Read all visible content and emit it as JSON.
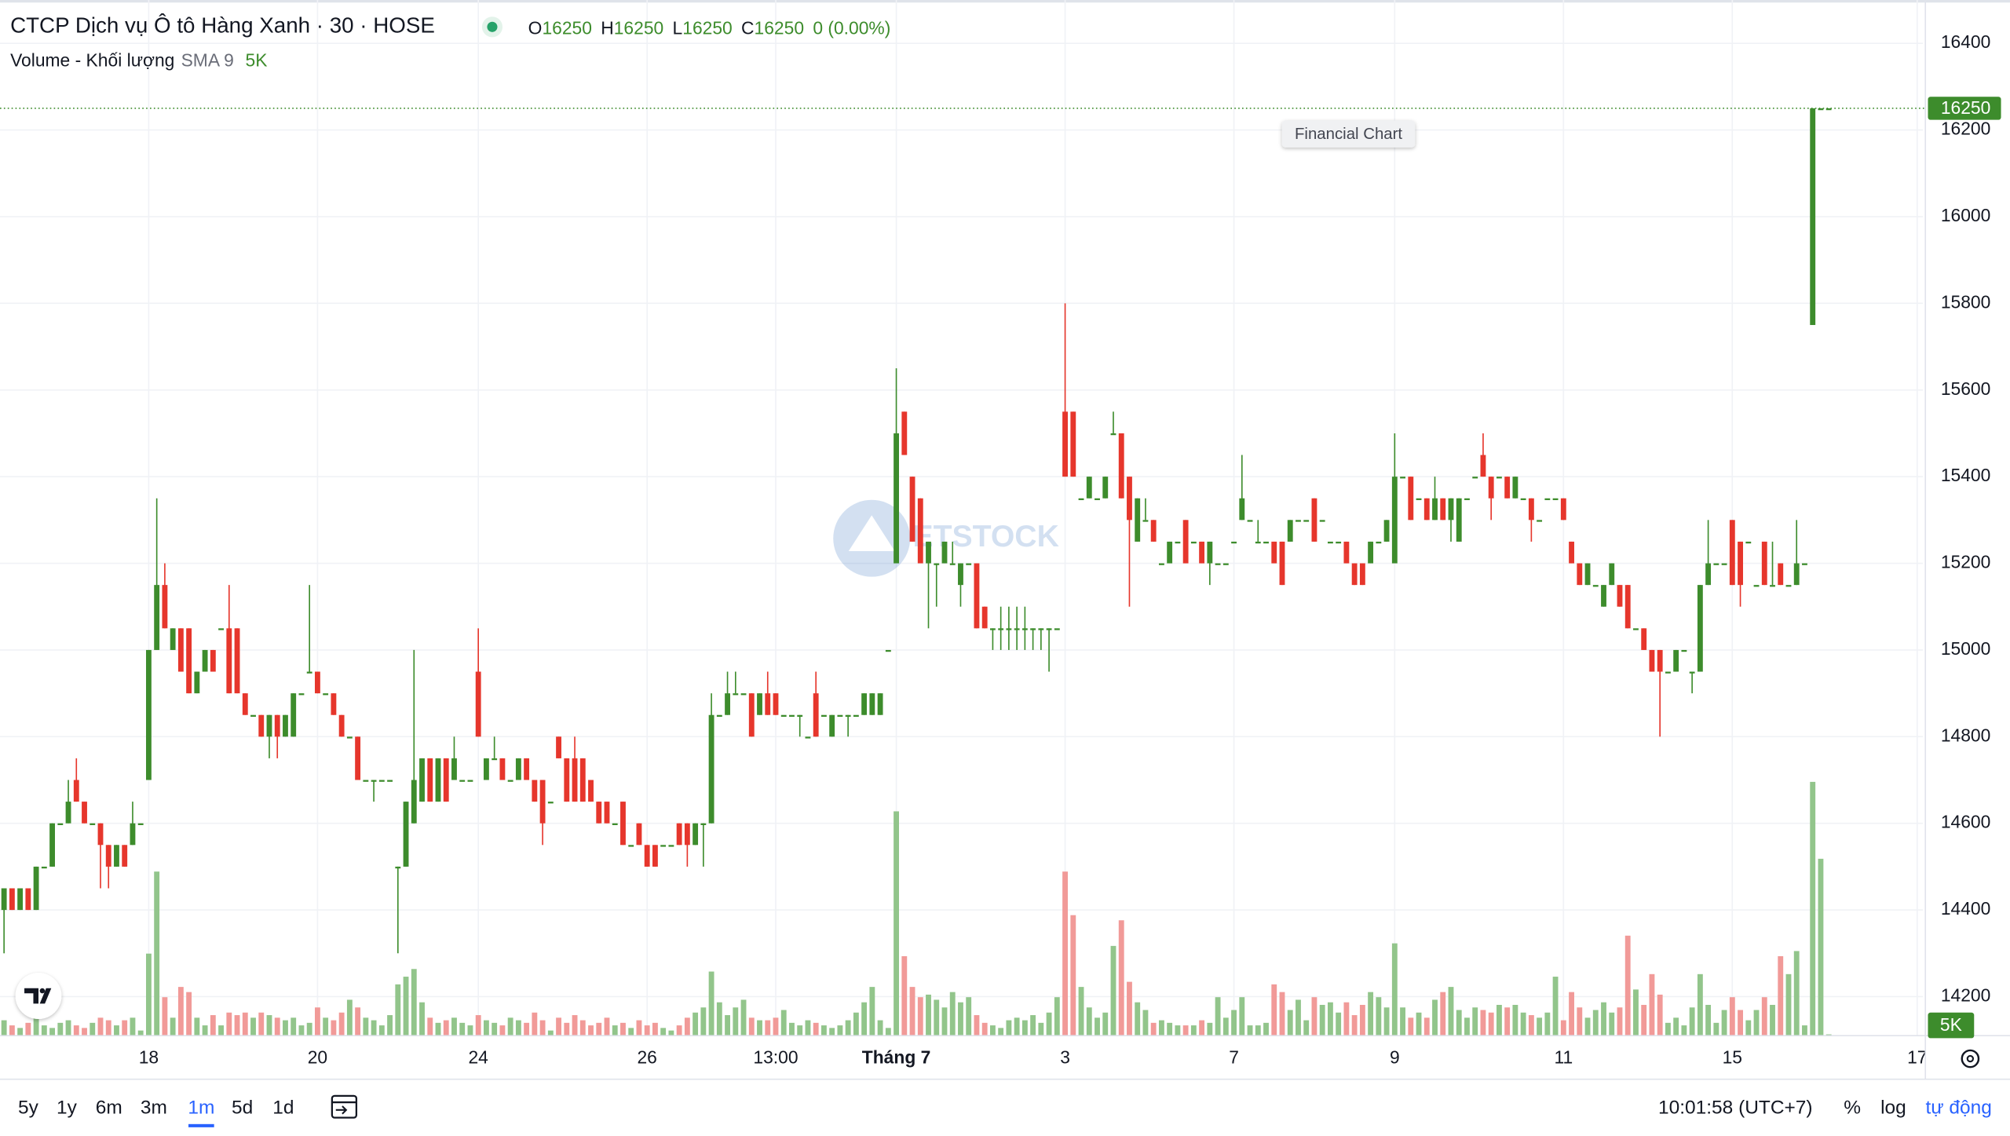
{
  "header": {
    "title": "CTCP Dịch vụ Ô tô Hàng Xanh · 30 · HOSE",
    "ohlc": [
      {
        "key": "O",
        "value": 16250
      },
      {
        "key": "H",
        "value": 16250
      },
      {
        "key": "L",
        "value": 16250
      },
      {
        "key": "C",
        "value": 16250
      }
    ],
    "change": "0 (0.00%)"
  },
  "volume_legend": {
    "name": "Volume - Khối lượng",
    "sma": "SMA 9",
    "last": "5K"
  },
  "tooltip": "Financial Chart",
  "watermark": "ETSTOCK",
  "chart_data": {
    "type": "candlestick",
    "xlim": [
      -0.5,
      238.7
    ],
    "xticks": [
      {
        "value": 18,
        "label": "18"
      },
      {
        "value": 39,
        "label": "20"
      },
      {
        "value": 59,
        "label": "24"
      },
      {
        "value": 80,
        "label": "26"
      },
      {
        "value": 96,
        "label": "13:00"
      },
      {
        "value": 111,
        "label": "Tháng 7",
        "bold": true
      },
      {
        "value": 132,
        "label": "3"
      },
      {
        "value": 153,
        "label": "7"
      },
      {
        "value": 173,
        "label": "9"
      },
      {
        "value": 194,
        "label": "11"
      },
      {
        "value": 215,
        "label": "15"
      },
      {
        "value": 238,
        "label": "17"
      }
    ],
    "ylim": [
      14110,
      16500
    ],
    "yticks": [
      14200,
      14400,
      14600,
      14800,
      15000,
      15200,
      15400,
      15600,
      15800,
      16000,
      16200,
      16400
    ],
    "volume_ylim": [
      0,
      1000000
    ],
    "grid": true,
    "up_color": "#3d8c2c",
    "down_color": "#e6362c",
    "volume_up_color": "#92c58b",
    "volume_down_color": "#f19a98",
    "open": [
      14400,
      14450,
      14400,
      14450,
      14400,
      14500,
      14500,
      14600,
      14600,
      14700,
      14650,
      14600,
      14600,
      14550,
      14500,
      14550,
      14550,
      14600,
      14700,
      15000,
      15150,
      15000,
      15050,
      15050,
      14900,
      14950,
      15000,
      15050,
      15050,
      15050,
      14900,
      14850,
      14850,
      14800,
      14850,
      14800,
      14800,
      14900,
      14950,
      14950,
      14900,
      14900,
      14850,
      14800,
      14800,
      14700,
      14700,
      14700,
      14700,
      14500,
      14500,
      14600,
      14650,
      14750,
      14650,
      14750,
      14700,
      14700,
      14700,
      14950,
      14700,
      14750,
      14750,
      14700,
      14700,
      14750,
      14700,
      14700,
      14650,
      14800,
      14750,
      14750,
      14750,
      14700,
      14650,
      14650,
      14600,
      14650,
      14550,
      14600,
      14550,
      14550,
      14550,
      14550,
      14600,
      14600,
      14550,
      14600,
      14600,
      14850,
      14850,
      14900,
      14900,
      14900,
      14850,
      14900,
      14900,
      14850,
      14850,
      14850,
      14800,
      14900,
      14850,
      14800,
      14850,
      14850,
      14850,
      14850,
      14850,
      14850,
      15000,
      15200,
      15550,
      15400,
      15350,
      15200,
      15200,
      15200,
      15200,
      15150,
      15200,
      15200,
      15100,
      15050,
      15050,
      15050,
      15050,
      15050,
      15050,
      15050,
      15050,
      15050,
      15550,
      15550,
      15350,
      15350,
      15350,
      15350,
      15500,
      15500,
      15400,
      15250,
      15300,
      15300,
      15200,
      15200,
      15250,
      15300,
      15250,
      15250,
      15200,
      15200,
      15200,
      15250,
      15300,
      15300,
      15250,
      15250,
      15250,
      15250,
      15250,
      15300,
      15300,
      15350,
      15300,
      15250,
      15250,
      15250,
      15200,
      15200,
      15200,
      15250,
      15250,
      15200,
      15400,
      15400,
      15350,
      15350,
      15300,
      15350,
      15300,
      15250,
      15350,
      15400,
      15450,
      15400,
      15400,
      15400,
      15350,
      15350,
      15350,
      15300,
      15350,
      15350,
      15350,
      15250,
      15200,
      15150,
      15150,
      15100,
      15150,
      15150,
      15150,
      15050,
      15050,
      15000,
      15000,
      14950,
      14950,
      15000,
      14950,
      14950,
      15150,
      15200,
      15200,
      15300,
      15250,
      15250,
      15150,
      15250,
      15150,
      15200,
      15150,
      15150,
      15200,
      15750,
      16250,
      16250
    ],
    "high": [
      14450,
      14450,
      14450,
      14450,
      14500,
      14500,
      14600,
      14600,
      14700,
      14750,
      14650,
      14600,
      14600,
      14550,
      14550,
      14550,
      14650,
      14600,
      15000,
      15350,
      15200,
      15050,
      15050,
      15050,
      14950,
      15000,
      15000,
      15050,
      15150,
      15050,
      14900,
      14850,
      14850,
      14850,
      14850,
      14850,
      14900,
      14900,
      15150,
      14950,
      14900,
      14900,
      14850,
      14800,
      14800,
      14700,
      14700,
      14700,
      14700,
      14500,
      14650,
      15000,
      14750,
      14750,
      14750,
      14750,
      14800,
      14700,
      14700,
      15050,
      14750,
      14800,
      14750,
      14700,
      14750,
      14750,
      14700,
      14700,
      14650,
      14800,
      14750,
      14800,
      14750,
      14700,
      14650,
      14650,
      14600,
      14650,
      14550,
      14600,
      14550,
      14550,
      14550,
      14550,
      14600,
      14600,
      14600,
      14600,
      14900,
      14850,
      14950,
      14950,
      14900,
      14900,
      14900,
      14950,
      14900,
      14850,
      14850,
      14850,
      14800,
      14950,
      14850,
      14850,
      14850,
      14850,
      14850,
      14900,
      14900,
      14900,
      15000,
      15650,
      15550,
      15400,
      15350,
      15250,
      15200,
      15250,
      15250,
      15200,
      15200,
      15200,
      15100,
      15050,
      15100,
      15100,
      15100,
      15100,
      15050,
      15050,
      15050,
      15050,
      15800,
      15550,
      15350,
      15400,
      15350,
      15400,
      15550,
      15500,
      15400,
      15350,
      15350,
      15300,
      15200,
      15250,
      15250,
      15300,
      15250,
      15250,
      15250,
      15200,
      15200,
      15250,
      15450,
      15300,
      15300,
      15250,
      15250,
      15250,
      15300,
      15300,
      15300,
      15350,
      15300,
      15250,
      15250,
      15250,
      15200,
      15200,
      15250,
      15250,
      15300,
      15500,
      15400,
      15400,
      15350,
      15350,
      15400,
      15350,
      15350,
      15350,
      15350,
      15400,
      15500,
      15400,
      15400,
      15400,
      15400,
      15350,
      15350,
      15300,
      15350,
      15350,
      15350,
      15250,
      15200,
      15200,
      15150,
      15150,
      15200,
      15150,
      15150,
      15050,
      15050,
      15000,
      15000,
      14950,
      15000,
      15000,
      14950,
      15150,
      15300,
      15200,
      15200,
      15300,
      15250,
      15250,
      15150,
      15250,
      15250,
      15200,
      15150,
      15300,
      15200,
      16250,
      16250,
      16250
    ],
    "low": [
      14300,
      14400,
      14400,
      14400,
      14400,
      14500,
      14500,
      14600,
      14600,
      14650,
      14600,
      14600,
      14450,
      14450,
      14500,
      14500,
      14550,
      14600,
      14700,
      15000,
      15050,
      15000,
      14950,
      14900,
      14900,
      14950,
      14950,
      15050,
      14900,
      14900,
      14850,
      14850,
      14800,
      14750,
      14750,
      14800,
      14800,
      14900,
      14950,
      14900,
      14900,
      14850,
      14800,
      14800,
      14700,
      14700,
      14650,
      14700,
      14700,
      14300,
      14500,
      14600,
      14650,
      14650,
      14650,
      14650,
      14700,
      14700,
      14700,
      14800,
      14700,
      14750,
      14700,
      14700,
      14700,
      14700,
      14650,
      14550,
      14650,
      14750,
      14650,
      14650,
      14650,
      14650,
      14600,
      14600,
      14600,
      14550,
      14550,
      14550,
      14500,
      14500,
      14550,
      14550,
      14550,
      14500,
      14550,
      14500,
      14600,
      14850,
      14850,
      14900,
      14900,
      14800,
      14850,
      14850,
      14850,
      14850,
      14850,
      14800,
      14800,
      14800,
      14850,
      14800,
      14850,
      14800,
      14850,
      14850,
      14850,
      14850,
      15000,
      15200,
      15450,
      15250,
      15200,
      15050,
      15100,
      15200,
      15200,
      15100,
      15200,
      15050,
      15050,
      15000,
      15000,
      15000,
      15000,
      15000,
      15000,
      15000,
      14950,
      15050,
      15400,
      15400,
      15350,
      15350,
      15350,
      15350,
      15500,
      15350,
      15100,
      15250,
      15300,
      15250,
      15200,
      15200,
      15250,
      15200,
      15250,
      15200,
      15150,
      15200,
      15200,
      15250,
      15300,
      15300,
      15250,
      15250,
      15200,
      15150,
      15250,
      15300,
      15300,
      15250,
      15300,
      15250,
      15250,
      15200,
      15150,
      15150,
      15200,
      15250,
      15250,
      15200,
      15400,
      15300,
      15350,
      15300,
      15300,
      15300,
      15250,
      15250,
      15350,
      15400,
      15400,
      15300,
      15400,
      15350,
      15350,
      15350,
      15250,
      15300,
      15350,
      15350,
      15300,
      15200,
      15150,
      15150,
      15150,
      15100,
      15150,
      15100,
      15050,
      15050,
      15000,
      14950,
      14800,
      14950,
      14950,
      15000,
      14900,
      14950,
      15150,
      15200,
      15200,
      15150,
      15100,
      15250,
      15150,
      15150,
      15150,
      15150,
      15150,
      15150,
      15200,
      15750,
      16250,
      16250
    ],
    "close": [
      14450,
      14400,
      14450,
      14400,
      14500,
      14500,
      14600,
      14600,
      14650,
      14650,
      14600,
      14600,
      14550,
      14500,
      14550,
      14500,
      14600,
      14600,
      15000,
      15150,
      15050,
      15050,
      14950,
      14900,
      14950,
      15000,
      14950,
      15050,
      14900,
      14900,
      14850,
      14850,
      14800,
      14850,
      14800,
      14850,
      14900,
      14900,
      14950,
      14900,
      14900,
      14850,
      14800,
      14800,
      14700,
      14700,
      14700,
      14700,
      14700,
      14500,
      14650,
      14700,
      14750,
      14650,
      14750,
      14650,
      14750,
      14700,
      14700,
      14800,
      14750,
      14750,
      14700,
      14700,
      14750,
      14700,
      14650,
      14600,
      14650,
      14750,
      14650,
      14650,
      14650,
      14650,
      14600,
      14600,
      14600,
      14550,
      14550,
      14550,
      14500,
      14500,
      14550,
      14550,
      14550,
      14550,
      14600,
      14600,
      14850,
      14850,
      14900,
      14900,
      14900,
      14800,
      14900,
      14850,
      14850,
      14850,
      14850,
      14850,
      14800,
      14800,
      14850,
      14850,
      14850,
      14850,
      14850,
      14900,
      14900,
      14900,
      15000,
      15500,
      15450,
      15250,
      15200,
      15250,
      15200,
      15250,
      15200,
      15200,
      15200,
      15050,
      15050,
      15050,
      15050,
      15050,
      15050,
      15050,
      15050,
      15050,
      15050,
      15050,
      15400,
      15400,
      15350,
      15400,
      15350,
      15400,
      15500,
      15350,
      15300,
      15350,
      15300,
      15250,
      15200,
      15250,
      15250,
      15200,
      15250,
      15200,
      15250,
      15200,
      15200,
      15250,
      15350,
      15300,
      15250,
      15250,
      15200,
      15150,
      15300,
      15300,
      15300,
      15250,
      15300,
      15250,
      15250,
      15200,
      15150,
      15150,
      15250,
      15250,
      15300,
      15400,
      15400,
      15300,
      15350,
      15300,
      15350,
      15300,
      15350,
      15350,
      15350,
      15400,
      15400,
      15350,
      15400,
      15350,
      15400,
      15350,
      15300,
      15300,
      15350,
      15350,
      15300,
      15200,
      15150,
      15200,
      15150,
      15150,
      15200,
      15100,
      15050,
      15050,
      15000,
      14950,
      14950,
      14950,
      15000,
      15000,
      14950,
      15150,
      15200,
      15200,
      15200,
      15150,
      15150,
      15250,
      15150,
      15150,
      15150,
      15150,
      15150,
      15200,
      15200,
      16250,
      16250,
      16250
    ],
    "volume": [
      60000,
      40000,
      30000,
      50000,
      70000,
      40000,
      30000,
      50000,
      60000,
      40000,
      30000,
      50000,
      70000,
      60000,
      40000,
      60000,
      70000,
      20000,
      320000,
      640000,
      150000,
      70000,
      190000,
      170000,
      70000,
      40000,
      80000,
      40000,
      90000,
      80000,
      90000,
      70000,
      90000,
      80000,
      70000,
      60000,
      70000,
      40000,
      50000,
      110000,
      70000,
      60000,
      90000,
      140000,
      110000,
      70000,
      60000,
      40000,
      80000,
      200000,
      230000,
      260000,
      130000,
      70000,
      50000,
      60000,
      70000,
      50000,
      40000,
      80000,
      60000,
      50000,
      40000,
      70000,
      60000,
      50000,
      90000,
      60000,
      20000,
      70000,
      50000,
      80000,
      60000,
      40000,
      50000,
      70000,
      40000,
      50000,
      30000,
      60000,
      40000,
      50000,
      30000,
      20000,
      40000,
      70000,
      90000,
      110000,
      250000,
      130000,
      80000,
      110000,
      140000,
      70000,
      60000,
      60000,
      70000,
      100000,
      50000,
      40000,
      60000,
      50000,
      40000,
      30000,
      40000,
      60000,
      90000,
      130000,
      190000,
      60000,
      30000,
      875000,
      310000,
      190000,
      150000,
      160000,
      140000,
      110000,
      170000,
      130000,
      150000,
      80000,
      50000,
      40000,
      30000,
      60000,
      70000,
      60000,
      80000,
      50000,
      90000,
      150000,
      640000,
      470000,
      190000,
      110000,
      70000,
      90000,
      350000,
      450000,
      210000,
      130000,
      100000,
      50000,
      60000,
      50000,
      40000,
      40000,
      40000,
      60000,
      50000,
      150000,
      70000,
      100000,
      150000,
      40000,
      40000,
      50000,
      200000,
      170000,
      100000,
      140000,
      60000,
      150000,
      120000,
      130000,
      90000,
      130000,
      80000,
      120000,
      170000,
      150000,
      110000,
      360000,
      110000,
      70000,
      90000,
      70000,
      140000,
      170000,
      190000,
      100000,
      70000,
      110000,
      100000,
      90000,
      120000,
      110000,
      120000,
      90000,
      80000,
      70000,
      90000,
      230000,
      60000,
      170000,
      110000,
      70000,
      100000,
      130000,
      90000,
      110000,
      390000,
      180000,
      120000,
      240000,
      160000,
      50000,
      70000,
      40000,
      110000,
      240000,
      120000,
      50000,
      100000,
      150000,
      100000,
      60000,
      100000,
      150000,
      120000,
      310000,
      240000,
      330000,
      40000,
      990000,
      690000,
      5000
    ]
  },
  "toolbar": {
    "ranges": [
      "5y",
      "1y",
      "6m",
      "3m",
      "1m",
      "5d",
      "1d"
    ],
    "active_range": 4,
    "time": "10:01:58 (UTC+7)",
    "options": [
      "%",
      "log",
      "tự động"
    ]
  }
}
